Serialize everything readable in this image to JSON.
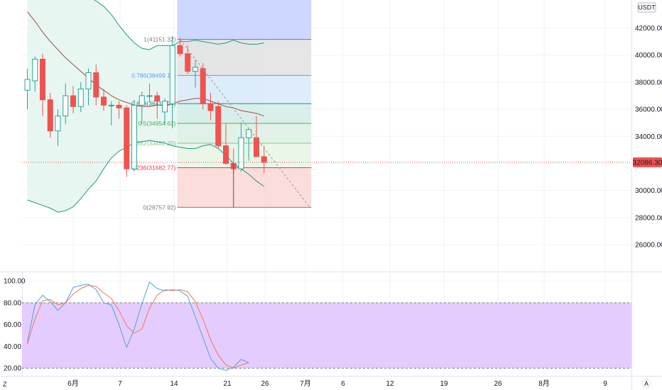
{
  "currency_label": "USDT",
  "last_price_label": "32086.30",
  "last_price": 32086.3,
  "colors": {
    "up_body": "#ffffff",
    "up_border": "#26a69a",
    "down": "#ef5350",
    "bb_line": "#1c9c86",
    "bb_fill": "#e8f6f1",
    "basis": "#a34b44",
    "k_line": "#4aa3df",
    "d_line": "#f07850",
    "stoch_band": "#e5ccff",
    "fib_top": "#cdd7ff",
    "fib_1": "#e3e3e3",
    "fib_786": "#dcebf9",
    "fib_618": "#d6ede9",
    "fib_5": "#dff1e6",
    "fib_382": "#e8f5e6",
    "fib_0": "#fbd9d8"
  },
  "chart_data": [
    {
      "type": "candlestick",
      "ylim": [
        24800,
        43700
      ],
      "y_ticks": [
        "42000.00",
        "40000.00",
        "38000.00",
        "36000.00",
        "34000.00",
        "32000.00",
        "30000.00",
        "28000.00",
        "26000.00"
      ],
      "y_tick_values": [
        42000,
        40000,
        38000,
        36000,
        34000,
        32000,
        30000,
        28000,
        26000
      ],
      "x_ticks": [
        "6月",
        "7",
        "14",
        "21",
        "26",
        "7月",
        "6",
        "12",
        "19",
        "26",
        "8月",
        "9"
      ],
      "candles": [
        {
          "o": 37400,
          "h": 39000,
          "l": 36000,
          "c": 38200
        },
        {
          "o": 38100,
          "h": 39900,
          "l": 37300,
          "c": 39700
        },
        {
          "o": 39700,
          "h": 40100,
          "l": 35500,
          "c": 36700
        },
        {
          "o": 36700,
          "h": 37200,
          "l": 33900,
          "c": 34400
        },
        {
          "o": 34400,
          "h": 36000,
          "l": 33300,
          "c": 35500
        },
        {
          "o": 35500,
          "h": 37900,
          "l": 34900,
          "c": 37000
        },
        {
          "o": 37000,
          "h": 37700,
          "l": 35700,
          "c": 36200
        },
        {
          "o": 36200,
          "h": 38000,
          "l": 35800,
          "c": 37500
        },
        {
          "o": 37500,
          "h": 39000,
          "l": 36300,
          "c": 38700
        },
        {
          "o": 38700,
          "h": 39300,
          "l": 36300,
          "c": 36900
        },
        {
          "o": 36900,
          "h": 37500,
          "l": 35900,
          "c": 36300
        },
        {
          "o": 36300,
          "h": 36600,
          "l": 34800,
          "c": 36300
        },
        {
          "o": 36300,
          "h": 36600,
          "l": 35300,
          "c": 36100
        },
        {
          "o": 36100,
          "h": 36300,
          "l": 31000,
          "c": 31600
        },
        {
          "o": 31600,
          "h": 36700,
          "l": 31400,
          "c": 36300
        },
        {
          "o": 36300,
          "h": 37300,
          "l": 34900,
          "c": 37000
        },
        {
          "o": 37000,
          "h": 37900,
          "l": 36500,
          "c": 37000
        },
        {
          "o": 37000,
          "h": 37300,
          "l": 35300,
          "c": 36600
        },
        {
          "o": 35800,
          "h": 36800,
          "l": 34900,
          "c": 36600
        },
        {
          "o": 36400,
          "h": 41400,
          "l": 34600,
          "c": 40700
        },
        {
          "o": 40700,
          "h": 41300,
          "l": 39900,
          "c": 40100
        },
        {
          "o": 40100,
          "h": 40700,
          "l": 38600,
          "c": 38800
        },
        {
          "o": 38800,
          "h": 39600,
          "l": 37600,
          "c": 39100
        },
        {
          "o": 39000,
          "h": 39400,
          "l": 36000,
          "c": 36400
        },
        {
          "o": 36400,
          "h": 37200,
          "l": 35200,
          "c": 35900
        },
        {
          "o": 36200,
          "h": 36600,
          "l": 33100,
          "c": 33300
        },
        {
          "o": 33300,
          "h": 34900,
          "l": 31900,
          "c": 32000
        },
        {
          "o": 32000,
          "h": 33100,
          "l": 31200,
          "c": 31600
        },
        {
          "o": 31600,
          "h": 35000,
          "l": 31400,
          "c": 33900
        },
        {
          "o": 33900,
          "h": 34600,
          "l": 32200,
          "c": 34500
        },
        {
          "o": 33900,
          "h": 35500,
          "l": 32500,
          "c": 32500
        },
        {
          "o": 32500,
          "h": 33300,
          "l": 31300,
          "c": 32086
        }
      ],
      "bollinger_upper": [
        44400,
        44700,
        44800,
        45000,
        45100,
        45100,
        44900,
        44600,
        44300,
        44000,
        43600,
        43000,
        42200,
        41500,
        40900,
        40500,
        40400,
        40700,
        40700,
        40700,
        41000,
        41000,
        41100,
        41000,
        40900,
        40800,
        40900,
        41100,
        40900,
        40800,
        40800,
        40900
      ],
      "bollinger_lower": [
        29300,
        29100,
        28900,
        28700,
        28400,
        28500,
        28800,
        29400,
        30100,
        30700,
        31600,
        32400,
        32900,
        33200,
        33500,
        33600,
        33700,
        33600,
        33500,
        33300,
        33200,
        33100,
        33100,
        33300,
        33400,
        33100,
        32600,
        32000,
        31600,
        31200,
        30700,
        30300
      ],
      "basis": [
        43200,
        42500,
        41700,
        41000,
        40400,
        39800,
        39300,
        38800,
        38300,
        37800,
        37400,
        37000,
        36700,
        36500,
        36300,
        36200,
        36200,
        36300,
        36300,
        36400,
        36600,
        36700,
        36800,
        36800,
        36600,
        36400,
        36200,
        36100,
        35900,
        35800,
        35700,
        35500
      ],
      "trend_line": {
        "from": {
          "i": 20,
          "v": 41151.32
        },
        "to": {
          "i": 37,
          "v": 28757.92
        }
      },
      "vertical_marker": {
        "i": 27,
        "from": 32000,
        "to": 28757.92
      }
    },
    {
      "type": "fibonacci_retracement",
      "start_index": 20,
      "end_index": 37,
      "levels": [
        {
          "ratio_label": "1",
          "value_label": "41151.32",
          "value": 41151.32
        },
        {
          "ratio_label": "0.786",
          "value_label": "38499.14",
          "value": 38499.14
        },
        {
          "ratio_label": "0.618",
          "value_label": "36417.04",
          "value": 36417.04
        },
        {
          "ratio_label": "0.5",
          "value_label": "34954.62",
          "value": 34954.62
        },
        {
          "ratio_label": "0.382",
          "value_label": "33492.20",
          "value": 33492.2
        },
        {
          "ratio_label": "0.236",
          "value_label": "31682.77",
          "value": 31682.77
        },
        {
          "ratio_label": "0",
          "value_label": "28757.92",
          "value": 28757.92
        }
      ]
    },
    {
      "type": "line",
      "name": "stochastic",
      "ylim": [
        13,
        106
      ],
      "y_ticks": [
        "100.00",
        "80.00",
        "60.00",
        "40.00",
        "20.00"
      ],
      "y_tick_values": [
        100,
        80,
        60,
        40,
        20
      ],
      "band": [
        20,
        80
      ],
      "k": [
        44,
        78,
        87,
        81,
        73,
        80,
        94,
        96,
        97,
        92,
        80,
        78,
        60,
        39,
        56,
        79,
        99,
        93,
        91,
        92,
        91,
        86,
        67,
        48,
        29,
        20,
        18,
        21,
        28,
        25
      ],
      "d": [
        42,
        65,
        82,
        83,
        78,
        80,
        88,
        93,
        96,
        95,
        89,
        84,
        73,
        59,
        52,
        56,
        75,
        87,
        92,
        91,
        92,
        90,
        81,
        65,
        46,
        32,
        23,
        20,
        23,
        25
      ]
    }
  ],
  "buttons": {
    "zoom_label": "Z",
    "auto_label": "A"
  }
}
